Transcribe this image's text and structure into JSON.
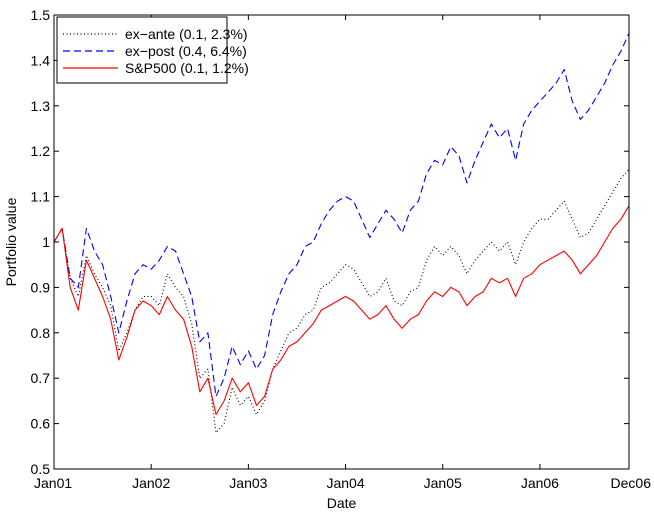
{
  "chart_data": {
    "type": "line",
    "xlabel": "Date",
    "ylabel": "Portfolio value",
    "xlim": [
      "2001-01",
      "2006-12"
    ],
    "ylim": [
      0.5,
      1.5
    ],
    "x_ticks": [
      {
        "date": "2001-01",
        "label": "Jan01"
      },
      {
        "date": "2002-01",
        "label": "Jan02"
      },
      {
        "date": "2003-01",
        "label": "Jan03"
      },
      {
        "date": "2004-01",
        "label": "Jan04"
      },
      {
        "date": "2005-01",
        "label": "Jan05"
      },
      {
        "date": "2006-01",
        "label": "Jan06"
      },
      {
        "date": "2006-12",
        "label": "Dec06"
      }
    ],
    "y_ticks": [
      0.5,
      0.6,
      0.7,
      0.8,
      0.9,
      1.0,
      1.1,
      1.2,
      1.3,
      1.4,
      1.5
    ],
    "y_tick_labels": [
      "0.5",
      "0.6",
      "0.7",
      "0.8",
      "0.9",
      "1",
      "1.1",
      "1.2",
      "1.3",
      "1.4",
      "1.5"
    ],
    "grid": false,
    "legend_position": "top-left",
    "series": [
      {
        "name": "ex−ante (0.1, 2.3%)",
        "color": "#000000",
        "style": "dotted",
        "points": [
          [
            "2001-01",
            1.0
          ],
          [
            "2001-02",
            1.03
          ],
          [
            "2001-03",
            0.92
          ],
          [
            "2001-04",
            0.88
          ],
          [
            "2001-05",
            0.97
          ],
          [
            "2001-06",
            0.93
          ],
          [
            "2001-07",
            0.9
          ],
          [
            "2001-08",
            0.86
          ],
          [
            "2001-09",
            0.76
          ],
          [
            "2001-10",
            0.8
          ],
          [
            "2001-11",
            0.85
          ],
          [
            "2001-12",
            0.88
          ],
          [
            "2002-01",
            0.88
          ],
          [
            "2002-02",
            0.86
          ],
          [
            "2002-03",
            0.93
          ],
          [
            "2002-04",
            0.9
          ],
          [
            "2002-05",
            0.88
          ],
          [
            "2002-06",
            0.82
          ],
          [
            "2002-07",
            0.7
          ],
          [
            "2002-08",
            0.72
          ],
          [
            "2002-09",
            0.58
          ],
          [
            "2002-10",
            0.6
          ],
          [
            "2002-11",
            0.68
          ],
          [
            "2002-12",
            0.64
          ],
          [
            "2003-01",
            0.66
          ],
          [
            "2003-02",
            0.62
          ],
          [
            "2003-03",
            0.65
          ],
          [
            "2003-04",
            0.72
          ],
          [
            "2003-05",
            0.76
          ],
          [
            "2003-06",
            0.8
          ],
          [
            "2003-07",
            0.81
          ],
          [
            "2003-08",
            0.84
          ],
          [
            "2003-09",
            0.85
          ],
          [
            "2003-10",
            0.9
          ],
          [
            "2003-11",
            0.91
          ],
          [
            "2003-12",
            0.93
          ],
          [
            "2004-01",
            0.95
          ],
          [
            "2004-02",
            0.94
          ],
          [
            "2004-03",
            0.91
          ],
          [
            "2004-04",
            0.88
          ],
          [
            "2004-05",
            0.89
          ],
          [
            "2004-06",
            0.92
          ],
          [
            "2004-07",
            0.87
          ],
          [
            "2004-08",
            0.86
          ],
          [
            "2004-09",
            0.89
          ],
          [
            "2004-10",
            0.9
          ],
          [
            "2004-11",
            0.96
          ],
          [
            "2004-12",
            0.99
          ],
          [
            "2005-01",
            0.97
          ],
          [
            "2005-02",
            0.99
          ],
          [
            "2005-03",
            0.97
          ],
          [
            "2005-04",
            0.93
          ],
          [
            "2005-05",
            0.96
          ],
          [
            "2005-06",
            0.98
          ],
          [
            "2005-07",
            1.0
          ],
          [
            "2005-08",
            0.98
          ],
          [
            "2005-09",
            1.0
          ],
          [
            "2005-10",
            0.95
          ],
          [
            "2005-11",
            1.0
          ],
          [
            "2005-12",
            1.03
          ],
          [
            "2006-01",
            1.05
          ],
          [
            "2006-02",
            1.05
          ],
          [
            "2006-03",
            1.07
          ],
          [
            "2006-04",
            1.09
          ],
          [
            "2006-05",
            1.05
          ],
          [
            "2006-06",
            1.01
          ],
          [
            "2006-07",
            1.02
          ],
          [
            "2006-08",
            1.05
          ],
          [
            "2006-09",
            1.08
          ],
          [
            "2006-10",
            1.11
          ],
          [
            "2006-11",
            1.14
          ],
          [
            "2006-12",
            1.16
          ]
        ]
      },
      {
        "name": "ex−post (0.4, 6.4%)",
        "color": "#0000ff",
        "style": "dashed",
        "points": [
          [
            "2001-01",
            1.0
          ],
          [
            "2001-02",
            1.03
          ],
          [
            "2001-03",
            0.92
          ],
          [
            "2001-04",
            0.9
          ],
          [
            "2001-05",
            1.03
          ],
          [
            "2001-06",
            0.98
          ],
          [
            "2001-07",
            0.95
          ],
          [
            "2001-08",
            0.88
          ],
          [
            "2001-09",
            0.8
          ],
          [
            "2001-10",
            0.87
          ],
          [
            "2001-11",
            0.93
          ],
          [
            "2001-12",
            0.95
          ],
          [
            "2002-01",
            0.94
          ],
          [
            "2002-02",
            0.96
          ],
          [
            "2002-03",
            0.99
          ],
          [
            "2002-04",
            0.98
          ],
          [
            "2002-05",
            0.93
          ],
          [
            "2002-06",
            0.88
          ],
          [
            "2002-07",
            0.78
          ],
          [
            "2002-08",
            0.8
          ],
          [
            "2002-09",
            0.66
          ],
          [
            "2002-10",
            0.7
          ],
          [
            "2002-11",
            0.77
          ],
          [
            "2002-12",
            0.73
          ],
          [
            "2003-01",
            0.76
          ],
          [
            "2003-02",
            0.72
          ],
          [
            "2003-03",
            0.75
          ],
          [
            "2003-04",
            0.84
          ],
          [
            "2003-05",
            0.89
          ],
          [
            "2003-06",
            0.93
          ],
          [
            "2003-07",
            0.95
          ],
          [
            "2003-08",
            0.99
          ],
          [
            "2003-09",
            1.0
          ],
          [
            "2003-10",
            1.04
          ],
          [
            "2003-11",
            1.07
          ],
          [
            "2003-12",
            1.09
          ],
          [
            "2004-01",
            1.1
          ],
          [
            "2004-02",
            1.09
          ],
          [
            "2004-03",
            1.05
          ],
          [
            "2004-04",
            1.01
          ],
          [
            "2004-05",
            1.04
          ],
          [
            "2004-06",
            1.07
          ],
          [
            "2004-07",
            1.05
          ],
          [
            "2004-08",
            1.02
          ],
          [
            "2004-09",
            1.07
          ],
          [
            "2004-10",
            1.09
          ],
          [
            "2004-11",
            1.15
          ],
          [
            "2004-12",
            1.18
          ],
          [
            "2005-01",
            1.17
          ],
          [
            "2005-02",
            1.21
          ],
          [
            "2005-03",
            1.19
          ],
          [
            "2005-04",
            1.13
          ],
          [
            "2005-05",
            1.18
          ],
          [
            "2005-06",
            1.22
          ],
          [
            "2005-07",
            1.26
          ],
          [
            "2005-08",
            1.23
          ],
          [
            "2005-09",
            1.25
          ],
          [
            "2005-10",
            1.18
          ],
          [
            "2005-11",
            1.26
          ],
          [
            "2005-12",
            1.29
          ],
          [
            "2006-01",
            1.31
          ],
          [
            "2006-02",
            1.33
          ],
          [
            "2006-03",
            1.35
          ],
          [
            "2006-04",
            1.38
          ],
          [
            "2006-05",
            1.31
          ],
          [
            "2006-06",
            1.27
          ],
          [
            "2006-07",
            1.29
          ],
          [
            "2006-08",
            1.32
          ],
          [
            "2006-09",
            1.35
          ],
          [
            "2006-10",
            1.39
          ],
          [
            "2006-11",
            1.42
          ],
          [
            "2006-12",
            1.46
          ]
        ]
      },
      {
        "name": "S&P500  (0.1, 1.2%)",
        "color": "#ff0000",
        "style": "solid",
        "points": [
          [
            "2001-01",
            1.0
          ],
          [
            "2001-02",
            1.03
          ],
          [
            "2001-03",
            0.9
          ],
          [
            "2001-04",
            0.85
          ],
          [
            "2001-05",
            0.96
          ],
          [
            "2001-06",
            0.92
          ],
          [
            "2001-07",
            0.88
          ],
          [
            "2001-08",
            0.83
          ],
          [
            "2001-09",
            0.74
          ],
          [
            "2001-10",
            0.79
          ],
          [
            "2001-11",
            0.85
          ],
          [
            "2001-12",
            0.87
          ],
          [
            "2002-01",
            0.86
          ],
          [
            "2002-02",
            0.84
          ],
          [
            "2002-03",
            0.88
          ],
          [
            "2002-04",
            0.85
          ],
          [
            "2002-05",
            0.83
          ],
          [
            "2002-06",
            0.77
          ],
          [
            "2002-07",
            0.67
          ],
          [
            "2002-08",
            0.7
          ],
          [
            "2002-09",
            0.62
          ],
          [
            "2002-10",
            0.65
          ],
          [
            "2002-11",
            0.7
          ],
          [
            "2002-12",
            0.67
          ],
          [
            "2003-01",
            0.69
          ],
          [
            "2003-02",
            0.64
          ],
          [
            "2003-03",
            0.66
          ],
          [
            "2003-04",
            0.72
          ],
          [
            "2003-05",
            0.74
          ],
          [
            "2003-06",
            0.77
          ],
          [
            "2003-07",
            0.78
          ],
          [
            "2003-08",
            0.8
          ],
          [
            "2003-09",
            0.82
          ],
          [
            "2003-10",
            0.85
          ],
          [
            "2003-11",
            0.86
          ],
          [
            "2003-12",
            0.87
          ],
          [
            "2004-01",
            0.88
          ],
          [
            "2004-02",
            0.87
          ],
          [
            "2004-03",
            0.85
          ],
          [
            "2004-04",
            0.83
          ],
          [
            "2004-05",
            0.84
          ],
          [
            "2004-06",
            0.86
          ],
          [
            "2004-07",
            0.83
          ],
          [
            "2004-08",
            0.81
          ],
          [
            "2004-09",
            0.83
          ],
          [
            "2004-10",
            0.84
          ],
          [
            "2004-11",
            0.87
          ],
          [
            "2004-12",
            0.89
          ],
          [
            "2005-01",
            0.88
          ],
          [
            "2005-02",
            0.9
          ],
          [
            "2005-03",
            0.89
          ],
          [
            "2005-04",
            0.86
          ],
          [
            "2005-05",
            0.88
          ],
          [
            "2005-06",
            0.89
          ],
          [
            "2005-07",
            0.92
          ],
          [
            "2005-08",
            0.91
          ],
          [
            "2005-09",
            0.92
          ],
          [
            "2005-10",
            0.88
          ],
          [
            "2005-11",
            0.92
          ],
          [
            "2005-12",
            0.93
          ],
          [
            "2006-01",
            0.95
          ],
          [
            "2006-02",
            0.96
          ],
          [
            "2006-03",
            0.97
          ],
          [
            "2006-04",
            0.98
          ],
          [
            "2006-05",
            0.96
          ],
          [
            "2006-06",
            0.93
          ],
          [
            "2006-07",
            0.95
          ],
          [
            "2006-08",
            0.97
          ],
          [
            "2006-09",
            1.0
          ],
          [
            "2006-10",
            1.03
          ],
          [
            "2006-11",
            1.05
          ],
          [
            "2006-12",
            1.08
          ]
        ]
      }
    ]
  }
}
